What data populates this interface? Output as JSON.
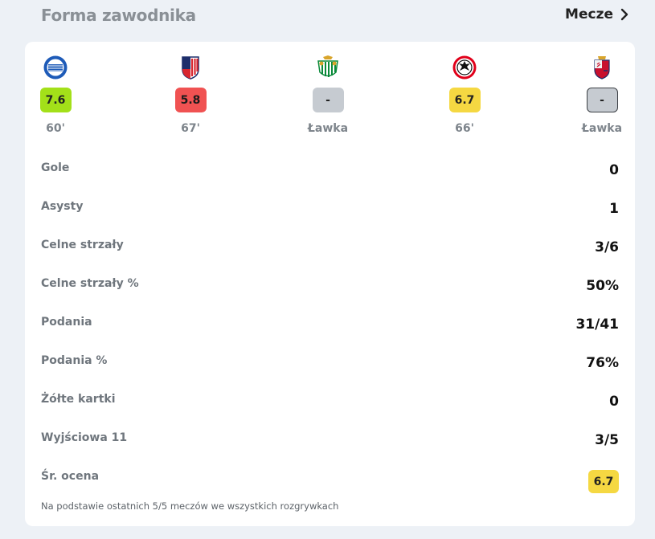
{
  "header": {
    "title": "Forma zawodnika",
    "link_label": "Mecze"
  },
  "matches": [
    {
      "team_icon": "alaves-crest-icon",
      "rating": "7.6",
      "rating_color": "#a3e019",
      "minutes": "60'"
    },
    {
      "team_icon": "atletico-crest-icon",
      "rating": "5.8",
      "rating_color": "#f05252",
      "minutes": "67'"
    },
    {
      "team_icon": "betis-crest-icon",
      "rating": "-",
      "rating_color": "#c6cbd1",
      "minutes": "Ławka"
    },
    {
      "team_icon": "eintracht-crest-icon",
      "rating": "6.7",
      "rating_color": "#f5d842",
      "minutes": "66'"
    },
    {
      "team_icon": "osasuna-crest-icon",
      "rating": "-",
      "rating_color": "#c6cbd1",
      "minutes": "Ławka"
    }
  ],
  "stats": [
    {
      "label": "Gole",
      "value": "0"
    },
    {
      "label": "Asysty",
      "value": "1"
    },
    {
      "label": "Celne strzały",
      "value": "3/6"
    },
    {
      "label": "Celne strzały %",
      "value": "50%"
    },
    {
      "label": "Podania",
      "value": "31/41"
    },
    {
      "label": "Podania %",
      "value": "76%"
    },
    {
      "label": "Żółte kartki",
      "value": "0"
    },
    {
      "label": "Wyjściowa 11",
      "value": "3/5"
    },
    {
      "label": "Śr. ocena",
      "value": "6.7"
    }
  ],
  "footnote": "Na podstawie ostatnich 5/5 meczów we wszystkich rozgrywkach"
}
